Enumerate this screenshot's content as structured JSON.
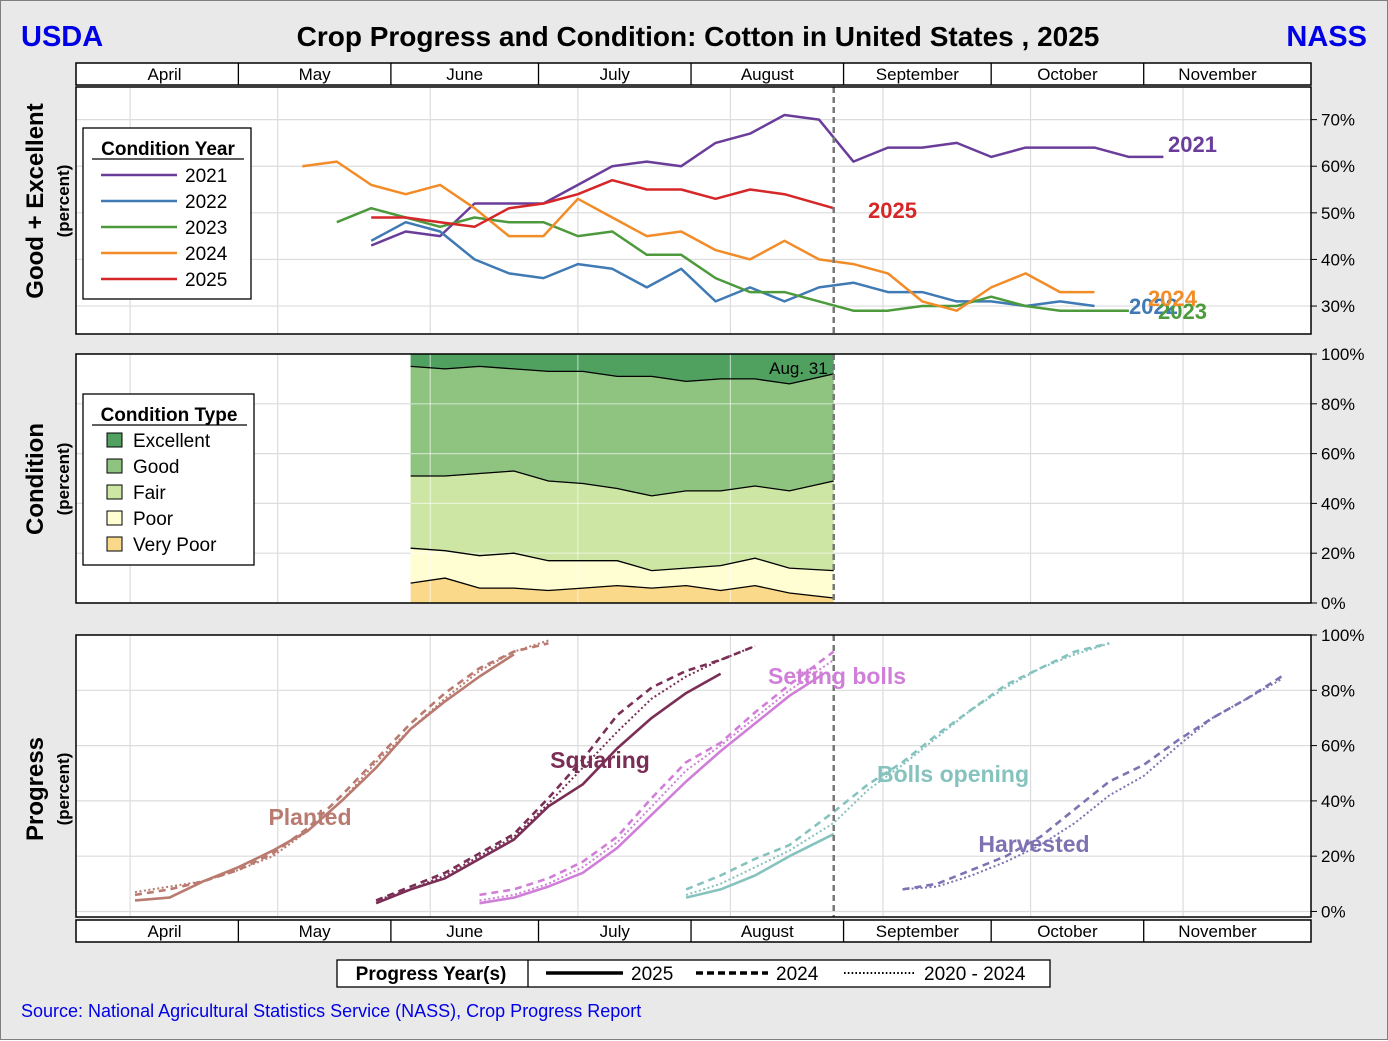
{
  "header": {
    "left_logo": "USDA",
    "title": "Crop Progress and Condition: Cotton in United States , 2025",
    "right_logo": "NASS",
    "accent_color": "#0000e6"
  },
  "months": [
    "April",
    "May",
    "June",
    "July",
    "August",
    "September",
    "October",
    "November"
  ],
  "source": "Source: National Agricultural Statistics Service (NASS), Crop Progress Report",
  "chart_data": [
    {
      "type": "line",
      "title": "Good + Excellent",
      "ylabel": "Good + Excellent",
      "ysub": "(percent)",
      "ylim": [
        24,
        77
      ],
      "yticks": [
        30,
        40,
        50,
        60,
        70
      ],
      "tick_labels": [
        "30%",
        "40%",
        "50%",
        "60%",
        "70%"
      ],
      "legend_title": "Condition Year",
      "current_week_day": 242,
      "series": [
        {
          "name": "2021",
          "color": "#6a3d9a",
          "label_color": "#6a3d9a",
          "end_label": "2021",
          "x": [
            148,
            155,
            162,
            169,
            176,
            183,
            190,
            197,
            204,
            211,
            218,
            225,
            232,
            239,
            246,
            253,
            260,
            267,
            274,
            281,
            288,
            295,
            302,
            309
          ],
          "y": [
            43,
            46,
            45,
            52,
            52,
            52,
            56,
            60,
            61,
            60,
            65,
            67,
            71,
            70,
            61,
            64,
            64,
            65,
            62,
            64,
            64,
            64,
            62,
            62
          ]
        },
        {
          "name": "2022",
          "color": "#3f7ab4",
          "label_color": "#3f7ab4",
          "end_label": "2022",
          "x": [
            148,
            155,
            162,
            169,
            176,
            183,
            190,
            197,
            204,
            211,
            218,
            225,
            232,
            239,
            246,
            253,
            260,
            267,
            274,
            281,
            288,
            295
          ],
          "y": [
            44,
            48,
            46,
            40,
            37,
            36,
            39,
            38,
            34,
            38,
            31,
            34,
            31,
            34,
            35,
            33,
            33,
            31,
            31,
            30,
            31,
            30
          ]
        },
        {
          "name": "2023",
          "color": "#4d9a3d",
          "label_color": "#4d9a3d",
          "end_label": "2023",
          "x": [
            141,
            148,
            155,
            162,
            169,
            176,
            183,
            190,
            197,
            204,
            211,
            218,
            225,
            232,
            239,
            246,
            253,
            260,
            267,
            274,
            281,
            288,
            295,
            302
          ],
          "y": [
            48,
            51,
            49,
            47,
            49,
            48,
            48,
            45,
            46,
            41,
            41,
            36,
            33,
            33,
            31,
            29,
            29,
            30,
            30,
            32,
            30,
            29,
            29,
            29
          ]
        },
        {
          "name": "2024",
          "color": "#f28c28",
          "label_color": "#f28c28",
          "end_label": "2024",
          "x": [
            134,
            141,
            148,
            155,
            162,
            169,
            176,
            183,
            190,
            197,
            204,
            211,
            218,
            225,
            232,
            239,
            246,
            253,
            260,
            267,
            274,
            281,
            288,
            295
          ],
          "y": [
            60,
            61,
            56,
            54,
            56,
            51,
            45,
            45,
            53,
            49,
            45,
            46,
            42,
            40,
            44,
            40,
            39,
            37,
            31,
            29,
            34,
            37,
            33,
            33
          ]
        },
        {
          "name": "2025",
          "color": "#d62728",
          "label_color": "#d62728",
          "end_label": "2025",
          "x": [
            148,
            155,
            162,
            169,
            176,
            183,
            190,
            197,
            204,
            211,
            218,
            225,
            232,
            242
          ],
          "y": [
            49,
            49,
            48,
            47,
            51,
            52,
            54,
            57,
            55,
            55,
            53,
            55,
            54,
            51
          ]
        }
      ]
    },
    {
      "type": "area",
      "title": "Condition",
      "ylabel": "Condition",
      "ysub": "(percent)",
      "ylim": [
        0,
        100
      ],
      "yticks": [
        0,
        20,
        40,
        60,
        80,
        100
      ],
      "tick_labels": [
        "0%",
        "20%",
        "40%",
        "60%",
        "80%",
        "100%"
      ],
      "legend_title": "Condition Type",
      "annotation": "Aug. 31",
      "x": [
        156,
        163,
        170,
        177,
        184,
        191,
        198,
        205,
        212,
        219,
        226,
        233,
        242
      ],
      "categories": [
        "Very Poor",
        "Poor",
        "Fair",
        "Good",
        "Excellent"
      ],
      "colors": [
        "#fbd98a",
        "#fffdd2",
        "#cde6a4",
        "#8ec47f",
        "#50a060"
      ],
      "cumulative_tops": [
        [
          8,
          10,
          6,
          6,
          5,
          6,
          7,
          6,
          7,
          5,
          7,
          4,
          2
        ],
        [
          22,
          21,
          19,
          20,
          17,
          17,
          17,
          13,
          14,
          15,
          18,
          14,
          13
        ],
        [
          51,
          51,
          52,
          53,
          49,
          48,
          46,
          43,
          45,
          45,
          47,
          45,
          49
        ],
        [
          95,
          94,
          95,
          94,
          93,
          93,
          91,
          91,
          89,
          90,
          90,
          88,
          92
        ],
        [
          100,
          100,
          100,
          100,
          100,
          100,
          100,
          100,
          100,
          100,
          100,
          100,
          100
        ]
      ]
    },
    {
      "type": "line",
      "title": "Progress",
      "ylabel": "Progress",
      "ysub": "(percent)",
      "ylim": [
        -2,
        100
      ],
      "yticks": [
        0,
        20,
        40,
        60,
        80,
        100
      ],
      "tick_labels": [
        "0%",
        "20%",
        "40%",
        "60%",
        "80%",
        "100%"
      ],
      "legend_title": "Progress Year(s)",
      "legend_entries": [
        {
          "label": "2025",
          "dash": "solid"
        },
        {
          "label": "2024",
          "dash": "dashed"
        },
        {
          "label": "2020 - 2024",
          "dash": "dotted"
        }
      ],
      "current_week_day": 242,
      "activities": [
        {
          "name": "Planted",
          "label": "Planted",
          "color": "#b97a70",
          "s2025": {
            "x": [
              100,
              107,
              114,
              121,
              128,
              135,
              142,
              149,
              156,
              163,
              170,
              177
            ],
            "y": [
              4,
              5,
              11,
              16,
              22,
              29,
              40,
              52,
              66,
              76,
              85,
              93
            ]
          },
          "s2024": {
            "x": [
              100,
              107,
              114,
              121,
              128,
              135,
              142,
              149,
              156,
              163,
              170,
              177,
              184
            ],
            "y": [
              6,
              8,
              11,
              15,
              21,
              30,
              42,
              55,
              68,
              79,
              88,
              94,
              97
            ]
          },
          "avg": {
            "x": [
              100,
              107,
              114,
              121,
              128,
              135,
              142,
              149,
              156,
              163,
              170,
              177,
              184
            ],
            "y": [
              7,
              9,
              11,
              15,
              20,
              29,
              40,
              54,
              66,
              77,
              87,
              94,
              98
            ]
          }
        },
        {
          "name": "Squaring",
          "label": "Squaring",
          "color": "#7a2e55",
          "s2025": {
            "x": [
              149,
              156,
              163,
              170,
              177,
              184,
              191,
              198,
              205,
              212,
              219
            ],
            "y": [
              3,
              8,
              12,
              19,
              26,
              38,
              46,
              59,
              70,
              79,
              86
            ]
          },
          "s2024": {
            "x": [
              149,
              156,
              163,
              170,
              177,
              184,
              191,
              198,
              205,
              212,
              219,
              226
            ],
            "y": [
              4,
              9,
              14,
              21,
              28,
              41,
              55,
              71,
              81,
              87,
              91,
              96
            ]
          },
          "avg": {
            "x": [
              149,
              156,
              163,
              170,
              177,
              184,
              191,
              198,
              205,
              212,
              219,
              226
            ],
            "y": [
              4,
              8,
              13,
              20,
              27,
              39,
              52,
              65,
              77,
              85,
              91,
              96
            ]
          }
        },
        {
          "name": "Setting bolls",
          "label": "Setting bolls",
          "color": "#d07fd8",
          "s2025": {
            "x": [
              170,
              177,
              184,
              191,
              198,
              205,
              212,
              219,
              226,
              233,
              240
            ],
            "y": [
              3,
              5,
              9,
              14,
              23,
              35,
              47,
              58,
              68,
              78,
              86
            ]
          },
          "s2024": {
            "x": [
              170,
              177,
              184,
              191,
              198,
              205,
              212,
              219,
              226,
              233,
              242
            ],
            "y": [
              6,
              8,
              12,
              18,
              27,
              41,
              54,
              61,
              72,
              82,
              94
            ]
          },
          "avg": {
            "x": [
              170,
              177,
              184,
              191,
              198,
              205,
              212,
              219,
              226,
              233,
              242
            ],
            "y": [
              4,
              6,
              10,
              16,
              25,
              38,
              51,
              60,
              70,
              80,
              91
            ]
          }
        },
        {
          "name": "Bolls opening",
          "label": "Bolls opening",
          "color": "#86c3bf",
          "s2025": {
            "x": [
              212,
              219,
              226,
              233,
              242
            ],
            "y": [
              5,
              8,
              13,
              20,
              28
            ]
          },
          "s2024": {
            "x": [
              212,
              219,
              226,
              233,
              242,
              249,
              256,
              263,
              270,
              277,
              284,
              291,
              298
            ],
            "y": [
              8,
              13,
              19,
              24,
              36,
              46,
              54,
              64,
              73,
              82,
              88,
              94,
              97
            ]
          },
          "avg": {
            "x": [
              212,
              219,
              226,
              233,
              242,
              249,
              256,
              263,
              270,
              277,
              284,
              291,
              298
            ],
            "y": [
              6,
              10,
              16,
              22,
              32,
              44,
              53,
              63,
              73,
              81,
              88,
              93,
              97
            ]
          }
        },
        {
          "name": "Harvested",
          "label": "Harvested",
          "color": "#7f72b3",
          "s2025": null,
          "s2024": {
            "x": [
              256,
              263,
              270,
              277,
              284,
              291,
              298,
              305,
              312,
              319,
              326,
              333
            ],
            "y": [
              8,
              10,
              15,
              20,
              27,
              37,
              47,
              53,
              62,
              70,
              77,
              85
            ]
          },
          "avg": {
            "x": [
              256,
              263,
              270,
              277,
              284,
              291,
              298,
              305,
              312,
              319,
              326,
              333
            ],
            "y": [
              8,
              9,
              13,
              18,
              24,
              32,
              42,
              49,
              60,
              70,
              77,
              84
            ]
          }
        }
      ]
    }
  ]
}
